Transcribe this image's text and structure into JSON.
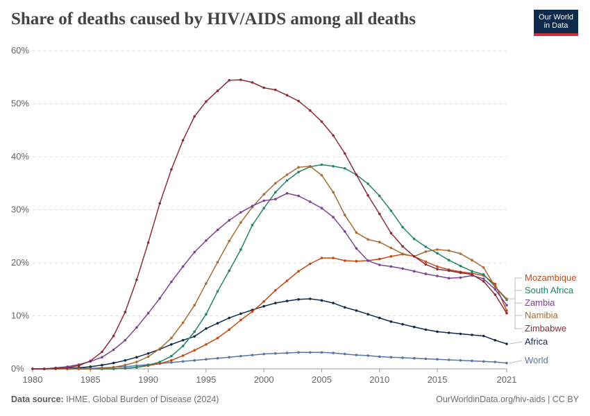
{
  "header": {
    "title": "Share of deaths caused by HIV/AIDS among all deaths",
    "logo_line1": "Our World",
    "logo_line2": "in Data"
  },
  "footer": {
    "source_label": "Data source:",
    "source_text": "IHME, Global Burden of Disease (2024)",
    "right_text": "OurWorldinData.org/hiv-aids | CC BY"
  },
  "colors": {
    "Mozambique": "#c24915",
    "South Africa": "#24826b",
    "Zambia": "#7a4293",
    "Namibia": "#a66b32",
    "Zimbabwe": "#8a2c38",
    "Africa": "#0f2a49",
    "World": "#5773a7"
  },
  "chart_data": {
    "type": "line",
    "title": "Share of deaths caused by HIV/AIDS among all deaths",
    "y_unit": "%",
    "ylim": [
      0,
      60
    ],
    "y_ticks": [
      0,
      10,
      20,
      30,
      40,
      50,
      60
    ],
    "x_ticks": [
      1980,
      1985,
      1990,
      1995,
      2000,
      2005,
      2010,
      2015,
      2021
    ],
    "x": [
      1980,
      1981,
      1982,
      1983,
      1984,
      1985,
      1986,
      1987,
      1988,
      1989,
      1990,
      1991,
      1992,
      1993,
      1994,
      1995,
      1996,
      1997,
      1998,
      1999,
      2000,
      2001,
      2002,
      2003,
      2004,
      2005,
      2006,
      2007,
      2008,
      2009,
      2010,
      2011,
      2012,
      2013,
      2014,
      2015,
      2016,
      2017,
      2018,
      2019,
      2020,
      2021
    ],
    "grid": "horizontal dashed",
    "legend": "labels at right end of lines",
    "series": [
      {
        "name": "Zimbabwe",
        "values": [
          0,
          0,
          0.1,
          0.2,
          0.6,
          1.5,
          3.2,
          6.2,
          10.7,
          16.8,
          23.8,
          31.2,
          37.6,
          43.1,
          47.6,
          50.4,
          52.4,
          54.4,
          54.5,
          54,
          53,
          52.6,
          51.6,
          50.5,
          48.7,
          46.6,
          44,
          40.6,
          36.6,
          32.7,
          29.2,
          25.6,
          23.1,
          21.2,
          19.7,
          18.8,
          18.5,
          18.1,
          17.8,
          16.5,
          14,
          10.5
        ]
      },
      {
        "name": "Zambia",
        "values": [
          0,
          0,
          0.2,
          0.4,
          0.8,
          1.4,
          2.2,
          3.6,
          5.4,
          7.8,
          10.5,
          13.3,
          16.4,
          19.3,
          22,
          24.2,
          26.2,
          28,
          29.5,
          30.7,
          31.7,
          32,
          33.1,
          32.6,
          31.5,
          30.3,
          28.6,
          25.9,
          22.7,
          20.4,
          19.6,
          19.3,
          18.9,
          18.4,
          17.9,
          17.5,
          17.1,
          17.2,
          17.6,
          17,
          15,
          12
        ]
      },
      {
        "name": "Namibia",
        "values": [
          0,
          0,
          0,
          0,
          0,
          0,
          0.1,
          0.3,
          0.7,
          1.3,
          2.3,
          3.8,
          5.8,
          8.7,
          12,
          16.1,
          20.1,
          24.1,
          27.6,
          30.5,
          32.9,
          35,
          36.6,
          38,
          38.2,
          36.5,
          33.3,
          29,
          25.7,
          24.4,
          23.9,
          22.8,
          21.7,
          21.2,
          22.1,
          22.5,
          22.3,
          21.7,
          20.5,
          19.1,
          15.5,
          13.2
        ]
      },
      {
        "name": "South Africa",
        "values": [
          0,
          0,
          0,
          0,
          0,
          0,
          0,
          0,
          0.1,
          0.3,
          0.7,
          1.3,
          2.4,
          4.3,
          7,
          10.3,
          14.6,
          18.5,
          22.5,
          27.1,
          30.3,
          33.3,
          35.5,
          37.1,
          38.1,
          38.5,
          38.2,
          37.8,
          36.6,
          34.9,
          32.6,
          29.8,
          26.7,
          24.5,
          23,
          21.8,
          20.5,
          19.4,
          18.4,
          17.8,
          15.5,
          13
        ]
      },
      {
        "name": "Mozambique",
        "values": [
          0,
          0,
          0,
          0,
          0,
          0,
          0,
          0,
          0.1,
          0.3,
          0.6,
          1,
          1.6,
          2.5,
          3.5,
          4.6,
          5.8,
          7.4,
          9.2,
          10.8,
          12.7,
          14.8,
          16.6,
          18.4,
          19.8,
          20.9,
          20.9,
          20.4,
          20.3,
          20.4,
          20.7,
          21.2,
          21.6,
          21.2,
          20.2,
          19.3,
          18.7,
          18.3,
          18,
          17.6,
          16,
          11
        ]
      },
      {
        "name": "Africa",
        "values": [
          0,
          0,
          0.1,
          0.1,
          0.2,
          0.4,
          0.7,
          1.1,
          1.6,
          2.2,
          2.9,
          3.7,
          4.6,
          5.4,
          6.1,
          7.6,
          8.6,
          9.6,
          10.4,
          11.1,
          11.8,
          12.4,
          12.8,
          13.1,
          13.2,
          12.9,
          12.4,
          11.6,
          11,
          10.3,
          9.6,
          8.9,
          8.4,
          7.9,
          7.4,
          7,
          6.8,
          6.6,
          6.4,
          6.2,
          5.4,
          4.7
        ]
      },
      {
        "name": "World",
        "values": [
          0,
          0,
          0,
          0,
          0.1,
          0.1,
          0.2,
          0.3,
          0.4,
          0.6,
          0.8,
          1,
          1.2,
          1.4,
          1.6,
          1.8,
          2,
          2.2,
          2.4,
          2.6,
          2.8,
          2.9,
          3,
          3.1,
          3.1,
          3.1,
          3,
          2.8,
          2.6,
          2.5,
          2.3,
          2.2,
          2.1,
          2,
          1.9,
          1.8,
          1.7,
          1.6,
          1.5,
          1.4,
          1.3,
          1.1
        ]
      }
    ],
    "end_labels": [
      "Mozambique",
      "South Africa",
      "Zambia",
      "Namibia",
      "Zimbabwe",
      "Africa",
      "World"
    ]
  }
}
